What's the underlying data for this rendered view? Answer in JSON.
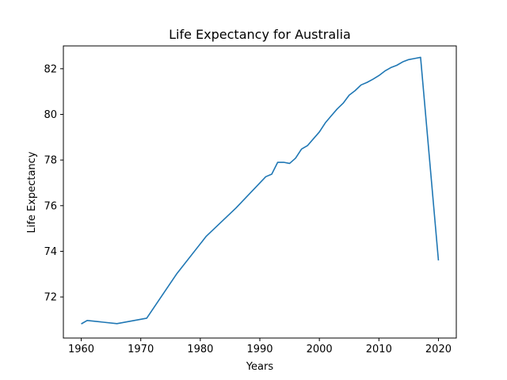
{
  "chart_data": {
    "type": "line",
    "title": "Life Expectancy for Australia",
    "xlabel": "Years",
    "ylabel": "Life Expectancy",
    "xlim": [
      1957,
      2023
    ],
    "ylim": [
      70.2,
      83.0
    ],
    "xticks": [
      1960,
      1970,
      1980,
      1990,
      2000,
      2010,
      2020
    ],
    "yticks": [
      72,
      74,
      76,
      78,
      80,
      82
    ],
    "grid": false,
    "line_color": "#1f77b4",
    "series": [
      {
        "x": [
          1960,
          1961,
          1966,
          1971,
          1976,
          1981,
          1986,
          1991,
          1992,
          1993,
          1994,
          1995,
          1996,
          1997,
          1998,
          1999,
          2000,
          2001,
          2002,
          2003,
          2004,
          2005,
          2006,
          2007,
          2008,
          2009,
          2010,
          2011,
          2012,
          2013,
          2014,
          2015,
          2016,
          2017,
          2020
        ],
        "y": [
          70.82,
          70.97,
          70.83,
          71.07,
          73.0,
          74.66,
          75.9,
          77.27,
          77.38,
          77.9,
          77.9,
          77.85,
          78.08,
          78.48,
          78.63,
          78.93,
          79.23,
          79.63,
          79.94,
          80.24,
          80.49,
          80.84,
          81.04,
          81.29,
          81.4,
          81.54,
          81.7,
          81.9,
          82.05,
          82.15,
          82.3,
          82.4,
          82.45,
          82.5,
          73.6
        ]
      }
    ]
  }
}
